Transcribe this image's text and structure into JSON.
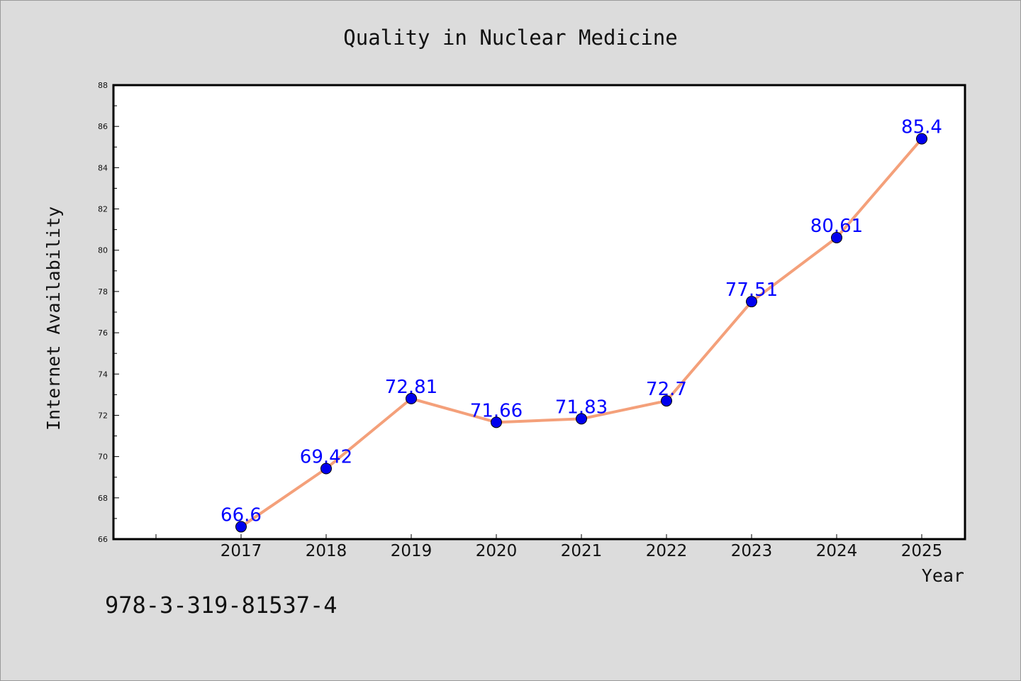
{
  "chart_data": {
    "type": "line",
    "title": "Quality in Nuclear Medicine",
    "xlabel": "Year",
    "ylabel": "Internet Availability",
    "categories": [
      "2017",
      "2018",
      "2019",
      "2020",
      "2021",
      "2022",
      "2023",
      "2024",
      "2025"
    ],
    "series": [
      {
        "values": [
          66.6,
          69.42,
          72.81,
          71.66,
          71.83,
          72.7,
          77.51,
          80.61,
          85.4
        ],
        "line_color": "#f4a07a",
        "marker_color": "#0000ee"
      }
    ],
    "data_labels": [
      "66.6",
      "69.42",
      "72.81",
      "71.66",
      "71.83",
      "72.7",
      "77.51",
      "80.61",
      "85.4"
    ],
    "ylim": [
      66,
      88
    ],
    "yticks": [
      "66",
      "68",
      "70",
      "72",
      "74",
      "76",
      "78",
      "80",
      "82",
      "84",
      "86",
      "88"
    ],
    "grid": false,
    "label_color": "#0000ff"
  },
  "footer": {
    "isbn": "978-3-319-81537-4"
  },
  "colors": {
    "background": "#dcdcdc",
    "plot_area": "#ffffff"
  }
}
